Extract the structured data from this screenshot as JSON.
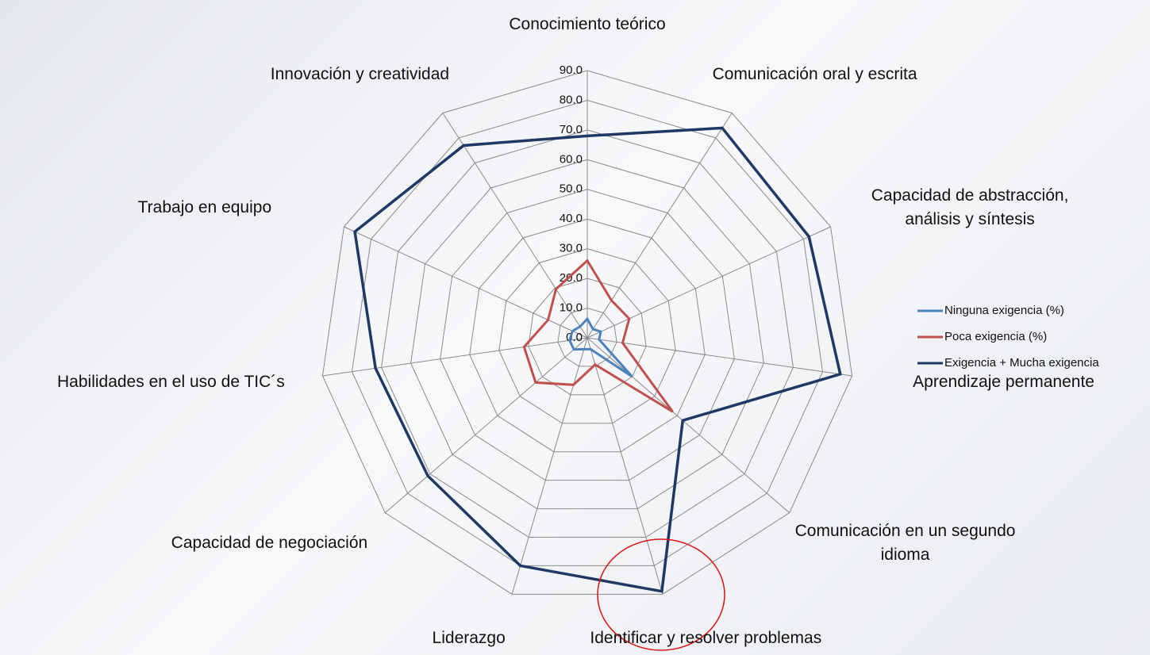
{
  "chart_data": {
    "type": "radar",
    "categories": [
      "Conocimiento teórico",
      "Comunicación oral y escrita",
      "Capacidad de abstracción, análisis y síntesis",
      "Aprendizaje permanente",
      "Comunicación en un segundo idioma",
      "Identificar y resolver problemas",
      "Liderazgo",
      "Capacidad de negociación",
      "Habilidades en el uso de TIC´s",
      "Trabajo en equipo",
      "Innovación y creatividad"
    ],
    "series": [
      {
        "name": "Ninguna exigencia (%)",
        "color": "#4f81bd",
        "values": [
          6.4,
          3.5,
          5,
          4,
          20,
          4,
          4,
          6,
          6,
          5.5,
          4.5
        ]
      },
      {
        "name": "Poca exigencia (%)",
        "color": "#c0504d",
        "values": [
          26,
          15,
          15.5,
          12,
          38,
          9.4,
          16.5,
          23,
          21.5,
          14.5,
          19.5
        ]
      },
      {
        "name": "Exigencia + Mucha exigencia",
        "color": "#1f3864",
        "values": [
          68,
          84,
          82,
          86,
          42.5,
          89,
          80,
          71,
          72,
          86,
          77
        ]
      }
    ],
    "ylim": [
      0,
      90
    ],
    "yticks": [
      {
        "value": 0,
        "label": "0.0"
      },
      {
        "value": 10,
        "label": "10.0"
      },
      {
        "value": 20,
        "label": "20.0"
      },
      {
        "value": 30,
        "label": "30.0"
      },
      {
        "value": 40,
        "label": "40.0"
      },
      {
        "value": 50,
        "label": "50.0"
      },
      {
        "value": 60,
        "label": "60.0"
      },
      {
        "value": 70,
        "label": "70.0"
      },
      {
        "value": 80,
        "label": "80.0"
      },
      {
        "value": 90,
        "label": "90.0"
      }
    ],
    "grid": true
  }
}
